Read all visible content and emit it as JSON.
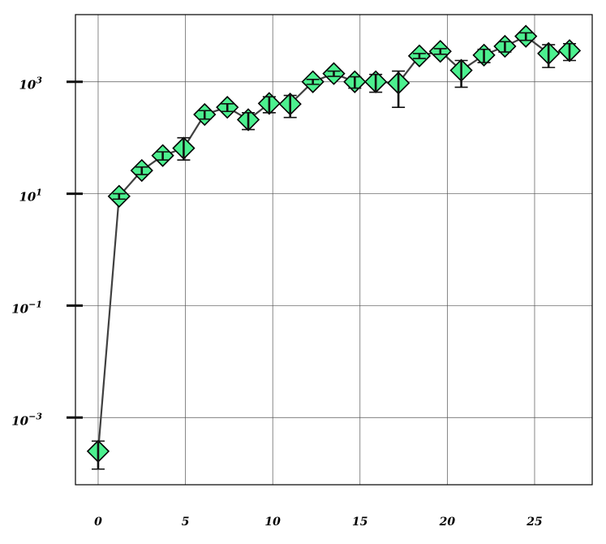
{
  "chart_data": {
    "type": "scatter",
    "title": "",
    "xlabel": "",
    "ylabel": "",
    "y_scale": "log",
    "grid": true,
    "xlim": [
      -1.3,
      28.3
    ],
    "ylim_log10": [
      -4.2,
      4.2
    ],
    "x_ticks": [
      0,
      5,
      10,
      15,
      20,
      25
    ],
    "x_tick_labels": [
      "0",
      "5",
      "10",
      "15",
      "20",
      "25"
    ],
    "y_ticks_log10": [
      -3,
      -1,
      1,
      3
    ],
    "y_tick_labels": [
      {
        "base": "10",
        "exp": "−3"
      },
      {
        "base": "10",
        "exp": "−1"
      },
      {
        "base": "10",
        "exp": "1"
      },
      {
        "base": "10",
        "exp": "3"
      }
    ],
    "marker": "diamond",
    "marker_color": "#4CF08F",
    "line_color": "#404040",
    "series": [
      {
        "x": [
          0,
          1.2,
          2.5,
          3.7,
          4.9,
          6.1,
          7.4,
          8.6,
          9.8,
          11.0,
          12.3,
          13.5,
          14.7,
          15.9,
          17.2,
          18.4,
          19.6,
          20.8,
          22.1,
          23.3,
          24.5,
          25.8,
          27.0
        ],
        "y": [
          0.00025,
          9,
          26,
          48,
          65,
          260,
          350,
          210,
          410,
          400,
          1000,
          1400,
          1000,
          1000,
          950,
          2900,
          3500,
          1600,
          3000,
          4300,
          6500,
          3200,
          3600
        ],
        "y_err_low": [
          0.00013,
          1,
          4,
          8,
          25,
          45,
          55,
          70,
          130,
          170,
          100,
          150,
          230,
          350,
          600,
          300,
          400,
          800,
          800,
          900,
          1000,
          1400,
          1200
        ],
        "y_err_high": [
          0.00013,
          1,
          4,
          8,
          35,
          45,
          55,
          70,
          130,
          170,
          100,
          150,
          230,
          350,
          600,
          300,
          400,
          800,
          800,
          900,
          1000,
          1400,
          1200
        ]
      }
    ]
  }
}
